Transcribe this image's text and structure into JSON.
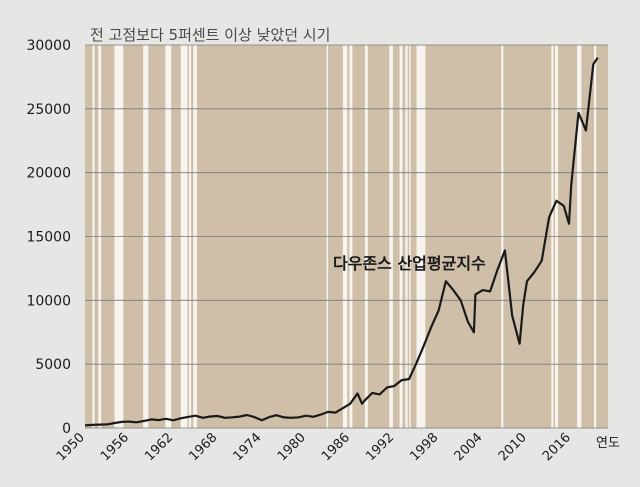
{
  "chart_data": {
    "type": "line",
    "title": "전 고점보다 5퍼센트 이상 낮았던 시기",
    "xlabel": "연도",
    "ylabel": "",
    "annotation": "다우존스 산업평균지수",
    "series_name": "다우존스 산업평균지수",
    "xlim": [
      1950,
      2021
    ],
    "ylim": [
      0,
      30000
    ],
    "y_ticks": [
      0,
      5000,
      10000,
      15000,
      20000,
      25000,
      30000
    ],
    "y_tick_labels": [
      "0",
      "5000",
      "10000",
      "15000",
      "20000",
      "25000",
      "30000"
    ],
    "x_ticks": [
      1950,
      1956,
      1962,
      1968,
      1974,
      1980,
      1986,
      1992,
      1998,
      2004,
      2010,
      2016
    ],
    "x_tick_labels": [
      "1950",
      "1956",
      "1962",
      "1968",
      "1974",
      "1980",
      "1986",
      "1992",
      "1998",
      "2004",
      "2010",
      "2016"
    ],
    "grid": true,
    "shaded_color": "#cfbfa8",
    "clear_color": "#f7f4ef",
    "line_color": "#1a1a1a",
    "not_shaded_periods": [
      [
        1951.0,
        1951.3
      ],
      [
        1951.8,
        1952.2
      ],
      [
        1954.0,
        1955.2
      ],
      [
        1957.9,
        1958.6
      ],
      [
        1960.9,
        1961.7
      ],
      [
        1963.0,
        1963.9
      ],
      [
        1964.1,
        1964.4
      ],
      [
        1964.7,
        1965.2
      ],
      [
        1982.8,
        1983.0
      ],
      [
        1985.0,
        1985.6
      ],
      [
        1985.9,
        1986.3
      ],
      [
        1988.0,
        1988.4
      ],
      [
        1991.3,
        1991.8
      ],
      [
        1992.7,
        1993.1
      ],
      [
        1993.5,
        1993.8
      ],
      [
        1994.0,
        1994.2
      ],
      [
        1995.0,
        1996.2
      ],
      [
        2006.5,
        2006.8
      ],
      [
        2013.3,
        2013.6
      ],
      [
        2013.8,
        2014.2
      ],
      [
        2016.8,
        2017.4
      ],
      [
        2019.1,
        2019.4
      ]
    ],
    "points": [
      [
        1950,
        200
      ],
      [
        1951,
        240
      ],
      [
        1952,
        270
      ],
      [
        1953,
        280
      ],
      [
        1954,
        390
      ],
      [
        1955,
        480
      ],
      [
        1956,
        500
      ],
      [
        1957,
        450
      ],
      [
        1958,
        560
      ],
      [
        1959,
        670
      ],
      [
        1960,
        620
      ],
      [
        1961,
        720
      ],
      [
        1962,
        600
      ],
      [
        1963,
        760
      ],
      [
        1964,
        870
      ],
      [
        1965,
        960
      ],
      [
        1966,
        800
      ],
      [
        1967,
        900
      ],
      [
        1968,
        940
      ],
      [
        1969,
        800
      ],
      [
        1970,
        840
      ],
      [
        1971,
        890
      ],
      [
        1972,
        1020
      ],
      [
        1973,
        850
      ],
      [
        1974,
        600
      ],
      [
        1975,
        850
      ],
      [
        1976,
        1000
      ],
      [
        1977,
        830
      ],
      [
        1978,
        800
      ],
      [
        1979,
        840
      ],
      [
        1980,
        960
      ],
      [
        1981,
        880
      ],
      [
        1982,
        1050
      ],
      [
        1983,
        1260
      ],
      [
        1984,
        1210
      ],
      [
        1985,
        1550
      ],
      [
        1986,
        1900
      ],
      [
        1987,
        2700
      ],
      [
        1987.6,
        1900
      ],
      [
        1988,
        2170
      ],
      [
        1989,
        2750
      ],
      [
        1990,
        2630
      ],
      [
        1991,
        3170
      ],
      [
        1992,
        3300
      ],
      [
        1993,
        3750
      ],
      [
        1994,
        3830
      ],
      [
        1995,
        5100
      ],
      [
        1996,
        6450
      ],
      [
        1997,
        7900
      ],
      [
        1998,
        9200
      ],
      [
        1999,
        11500
      ],
      [
        2000,
        10800
      ],
      [
        2001,
        10000
      ],
      [
        2002,
        8300
      ],
      [
        2002.8,
        7500
      ],
      [
        2003,
        10450
      ],
      [
        2004,
        10800
      ],
      [
        2005,
        10700
      ],
      [
        2006,
        12400
      ],
      [
        2007,
        13900
      ],
      [
        2008,
        8800
      ],
      [
        2009,
        6600
      ],
      [
        2009.5,
        9700
      ],
      [
        2010,
        11500
      ],
      [
        2011,
        12200
      ],
      [
        2012,
        13100
      ],
      [
        2013,
        16500
      ],
      [
        2014,
        17800
      ],
      [
        2015,
        17400
      ],
      [
        2015.7,
        16000
      ],
      [
        2016,
        19000
      ],
      [
        2017,
        24700
      ],
      [
        2018,
        23300
      ],
      [
        2019,
        28500
      ],
      [
        2019.6,
        29000
      ]
    ]
  }
}
